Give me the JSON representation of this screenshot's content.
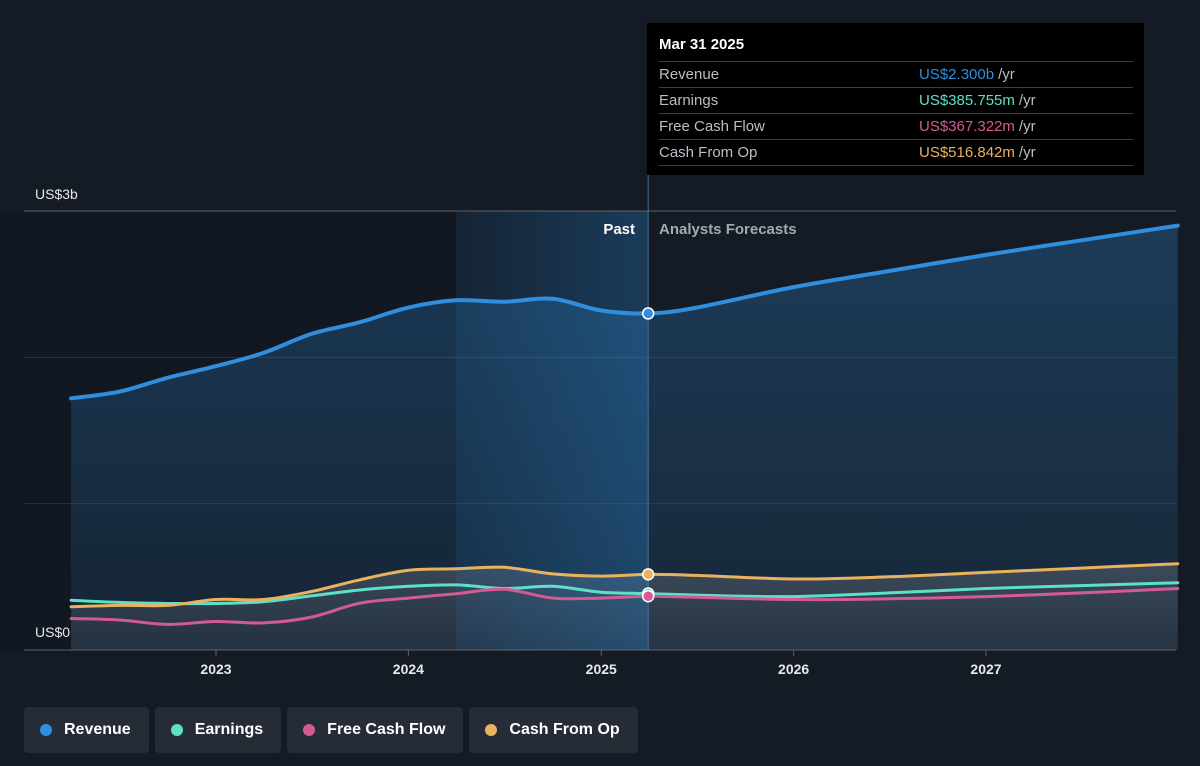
{
  "chart_data": {
    "type": "line",
    "y_axis": {
      "top_label": "US$3b",
      "bottom_label": "US$0",
      "ylim": [
        0,
        3000
      ]
    },
    "x_ticks": [
      "2023",
      "2024",
      "2025",
      "2026",
      "2027"
    ],
    "region_labels": {
      "past": "Past",
      "forecast": "Analysts Forecasts"
    },
    "series": [
      {
        "name": "Revenue",
        "color": "#2f8fde",
        "points": [
          [
            "2022-04-01",
            1720
          ],
          [
            "2022-07-01",
            1765
          ],
          [
            "2022-10-01",
            1860
          ],
          [
            "2023-01-01",
            1940
          ],
          [
            "2023-04-01",
            2030
          ],
          [
            "2023-07-01",
            2160
          ],
          [
            "2023-10-01",
            2240
          ],
          [
            "2024-01-01",
            2340
          ],
          [
            "2024-04-01",
            2390
          ],
          [
            "2024-07-01",
            2380
          ],
          [
            "2024-10-01",
            2400
          ],
          [
            "2025-01-01",
            2320
          ],
          [
            "2025-03-31",
            2300
          ],
          [
            "2025-07-01",
            2340
          ],
          [
            "2026-01-01",
            2480
          ],
          [
            "2026-07-01",
            2590
          ],
          [
            "2027-01-01",
            2700
          ],
          [
            "2027-07-01",
            2800
          ],
          [
            "2027-12-31",
            2900
          ]
        ]
      },
      {
        "name": "Earnings",
        "color": "#5ee0c8",
        "points": [
          [
            "2022-04-01",
            340
          ],
          [
            "2022-07-01",
            325
          ],
          [
            "2022-10-01",
            318
          ],
          [
            "2023-01-01",
            318
          ],
          [
            "2023-04-01",
            330
          ],
          [
            "2023-07-01",
            370
          ],
          [
            "2023-10-01",
            410
          ],
          [
            "2024-01-01",
            435
          ],
          [
            "2024-04-01",
            445
          ],
          [
            "2024-07-01",
            420
          ],
          [
            "2024-10-01",
            435
          ],
          [
            "2025-01-01",
            395
          ],
          [
            "2025-03-31",
            385.755
          ],
          [
            "2025-07-01",
            375
          ],
          [
            "2026-01-01",
            365
          ],
          [
            "2026-07-01",
            390
          ],
          [
            "2027-01-01",
            420
          ],
          [
            "2027-07-01",
            440
          ],
          [
            "2027-12-31",
            460
          ]
        ]
      },
      {
        "name": "Free Cash Flow",
        "color": "#d35b92",
        "points": [
          [
            "2022-04-01",
            215
          ],
          [
            "2022-07-01",
            205
          ],
          [
            "2022-10-01",
            175
          ],
          [
            "2023-01-01",
            195
          ],
          [
            "2023-04-01",
            185
          ],
          [
            "2023-07-01",
            225
          ],
          [
            "2023-10-01",
            320
          ],
          [
            "2024-01-01",
            355
          ],
          [
            "2024-04-01",
            385
          ],
          [
            "2024-07-01",
            415
          ],
          [
            "2024-10-01",
            355
          ],
          [
            "2025-01-01",
            355
          ],
          [
            "2025-03-31",
            367.322
          ],
          [
            "2025-07-01",
            360
          ],
          [
            "2026-01-01",
            345
          ],
          [
            "2026-07-01",
            350
          ],
          [
            "2027-01-01",
            365
          ],
          [
            "2027-07-01",
            390
          ],
          [
            "2027-12-31",
            420
          ]
        ]
      },
      {
        "name": "Cash From Op",
        "color": "#e9b25f",
        "points": [
          [
            "2022-04-01",
            295
          ],
          [
            "2022-07-01",
            305
          ],
          [
            "2022-10-01",
            305
          ],
          [
            "2023-01-01",
            345
          ],
          [
            "2023-04-01",
            345
          ],
          [
            "2023-07-01",
            400
          ],
          [
            "2023-10-01",
            480
          ],
          [
            "2024-01-01",
            545
          ],
          [
            "2024-04-01",
            555
          ],
          [
            "2024-07-01",
            565
          ],
          [
            "2024-10-01",
            520
          ],
          [
            "2025-01-01",
            505
          ],
          [
            "2025-03-31",
            516.842
          ],
          [
            "2025-07-01",
            510
          ],
          [
            "2026-01-01",
            485
          ],
          [
            "2026-07-01",
            500
          ],
          [
            "2027-01-01",
            530
          ],
          [
            "2027-07-01",
            560
          ],
          [
            "2027-12-31",
            590
          ]
        ]
      }
    ],
    "highlight_date": "2025-03-31"
  },
  "tooltip": {
    "date": "Mar 31 2025",
    "rows": [
      {
        "name": "Revenue",
        "value": "US$2.300b",
        "unit": "/yr",
        "color": "#2f8fde"
      },
      {
        "name": "Earnings",
        "value": "US$385.755m",
        "unit": "/yr",
        "color": "#5ee0c8"
      },
      {
        "name": "Free Cash Flow",
        "value": "US$367.322m",
        "unit": "/yr",
        "color": "#d35b92"
      },
      {
        "name": "Cash From Op",
        "value": "US$516.842m",
        "unit": "/yr",
        "color": "#e9b25f"
      }
    ]
  },
  "legend": [
    {
      "label": "Revenue",
      "color": "#2f8fde"
    },
    {
      "label": "Earnings",
      "color": "#5ee0c8"
    },
    {
      "label": "Free Cash Flow",
      "color": "#d35b92"
    },
    {
      "label": "Cash From Op",
      "color": "#e9b25f"
    }
  ]
}
